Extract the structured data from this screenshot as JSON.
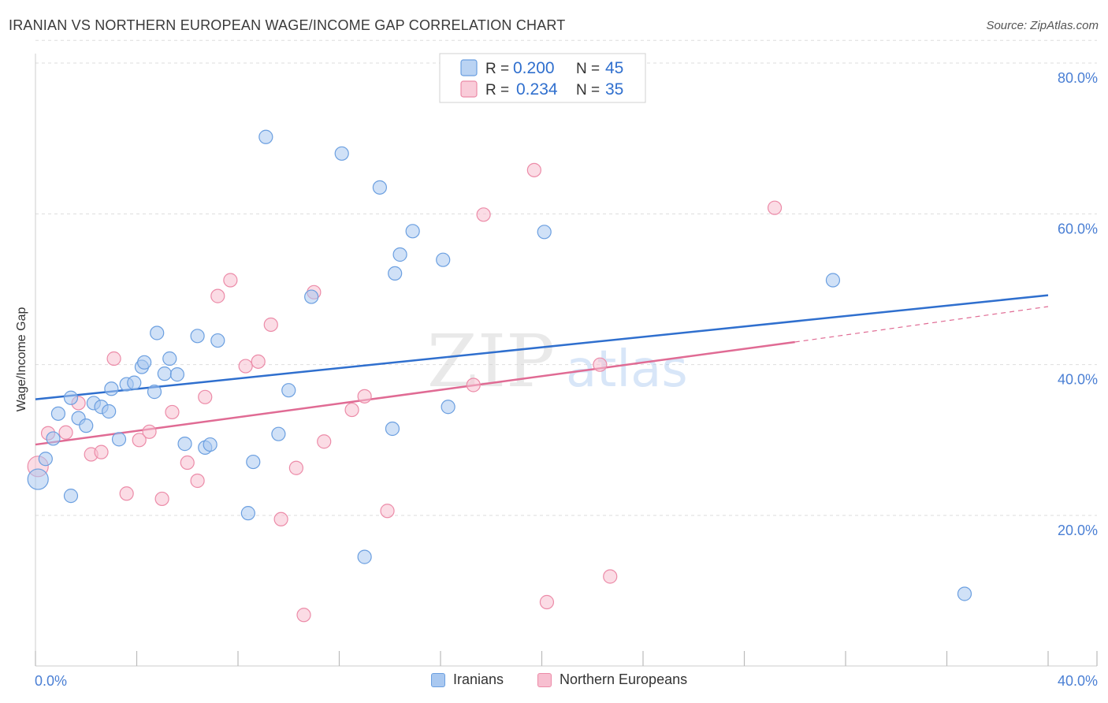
{
  "header": {
    "title": "IRANIAN VS NORTHERN EUROPEAN WAGE/INCOME GAP CORRELATION CHART",
    "source": "Source: ZipAtlas.com"
  },
  "watermark": {
    "zip": "ZIP",
    "atlas": "atlas"
  },
  "colors": {
    "iranians_fill": "#a9c8f0",
    "iranians_stroke": "#6b9fe0",
    "iranians_line": "#2f6fce",
    "northern_fill": "#f7bfd0",
    "northern_stroke": "#ec8ba8",
    "northern_line": "#e06b94",
    "axis_tick_text": "#4a7fd4",
    "grid": "#dddddd"
  },
  "legend": {
    "rows": [
      {
        "r_label": "R =",
        "r_value": "0.200",
        "n_label": "N =",
        "n_value": "45"
      },
      {
        "r_label": "R =",
        "r_value": "0.234",
        "n_label": "N =",
        "n_value": "35"
      }
    ]
  },
  "bottom_legend": [
    {
      "label": "Iranians"
    },
    {
      "label": "Northern Europeans"
    }
  ],
  "chart_data": {
    "type": "scatter",
    "title": "IRANIAN VS NORTHERN EUROPEAN WAGE/INCOME GAP CORRELATION CHART",
    "xlabel": "",
    "ylabel": "Wage/Income Gap",
    "xlim": [
      0,
      40
    ],
    "ylim": [
      0,
      83
    ],
    "x_tick_labels": [
      "0.0%",
      "40.0%"
    ],
    "x_tick_values": [
      0,
      40
    ],
    "y_tick_labels": [
      "20.0%",
      "40.0%",
      "60.0%",
      "80.0%"
    ],
    "y_tick_values": [
      20,
      40,
      60,
      80
    ],
    "grid": true,
    "legend_position": "top-center",
    "series": [
      {
        "name": "Iranians",
        "r": 0.2,
        "n": 45,
        "trend": {
          "x": [
            0,
            40
          ],
          "y": [
            35.4,
            49.2
          ]
        },
        "points": [
          [
            0.1,
            24.8
          ],
          [
            0.4,
            27.5
          ],
          [
            0.7,
            30.2
          ],
          [
            0.9,
            33.5
          ],
          [
            1.4,
            35.6
          ],
          [
            1.4,
            22.6
          ],
          [
            1.7,
            32.9
          ],
          [
            2.0,
            31.9
          ],
          [
            2.3,
            34.9
          ],
          [
            2.6,
            34.4
          ],
          [
            2.9,
            33.8
          ],
          [
            3.0,
            36.8
          ],
          [
            3.3,
            30.1
          ],
          [
            3.6,
            37.4
          ],
          [
            3.9,
            37.6
          ],
          [
            4.2,
            39.7
          ],
          [
            4.3,
            40.3
          ],
          [
            4.7,
            36.4
          ],
          [
            4.8,
            44.2
          ],
          [
            5.1,
            38.8
          ],
          [
            5.3,
            40.8
          ],
          [
            5.6,
            38.7
          ],
          [
            5.9,
            29.5
          ],
          [
            6.4,
            43.8
          ],
          [
            6.7,
            29.0
          ],
          [
            6.9,
            29.4
          ],
          [
            7.2,
            43.2
          ],
          [
            8.4,
            20.3
          ],
          [
            8.6,
            27.1
          ],
          [
            9.1,
            70.2
          ],
          [
            9.6,
            30.8
          ],
          [
            10.0,
            36.6
          ],
          [
            10.9,
            49.0
          ],
          [
            12.1,
            68.0
          ],
          [
            13.0,
            14.5
          ],
          [
            13.6,
            63.5
          ],
          [
            14.1,
            31.5
          ],
          [
            14.2,
            52.1
          ],
          [
            14.4,
            54.6
          ],
          [
            14.9,
            57.7
          ],
          [
            16.1,
            53.9
          ],
          [
            16.3,
            34.4
          ],
          [
            20.1,
            57.6
          ],
          [
            31.5,
            51.2
          ],
          [
            36.7,
            9.6
          ]
        ]
      },
      {
        "name": "Northern Europeans",
        "r": 0.234,
        "n": 35,
        "trend": {
          "x": [
            0,
            30
          ],
          "y": [
            29.4,
            43.0
          ]
        },
        "trend_extension": {
          "x": [
            30,
            40
          ],
          "y": [
            43.0,
            47.7
          ]
        },
        "points": [
          [
            0.1,
            26.5
          ],
          [
            0.5,
            30.9
          ],
          [
            1.2,
            31.0
          ],
          [
            1.7,
            34.9
          ],
          [
            2.2,
            28.1
          ],
          [
            2.6,
            28.4
          ],
          [
            3.1,
            40.8
          ],
          [
            3.6,
            22.9
          ],
          [
            4.1,
            30.0
          ],
          [
            4.5,
            31.1
          ],
          [
            5.0,
            22.2
          ],
          [
            5.4,
            33.7
          ],
          [
            6.0,
            27.0
          ],
          [
            6.4,
            24.6
          ],
          [
            6.7,
            35.7
          ],
          [
            7.2,
            49.1
          ],
          [
            7.7,
            51.2
          ],
          [
            8.3,
            39.8
          ],
          [
            8.8,
            40.4
          ],
          [
            9.3,
            45.3
          ],
          [
            9.7,
            19.5
          ],
          [
            10.3,
            26.3
          ],
          [
            10.6,
            6.8
          ],
          [
            11.0,
            49.6
          ],
          [
            11.4,
            29.8
          ],
          [
            12.5,
            34.0
          ],
          [
            13.0,
            35.8
          ],
          [
            13.9,
            20.6
          ],
          [
            17.3,
            37.3
          ],
          [
            17.7,
            59.9
          ],
          [
            19.7,
            65.8
          ],
          [
            20.2,
            8.5
          ],
          [
            22.3,
            40.0
          ],
          [
            22.7,
            11.9
          ],
          [
            29.2,
            60.8
          ]
        ]
      }
    ]
  }
}
